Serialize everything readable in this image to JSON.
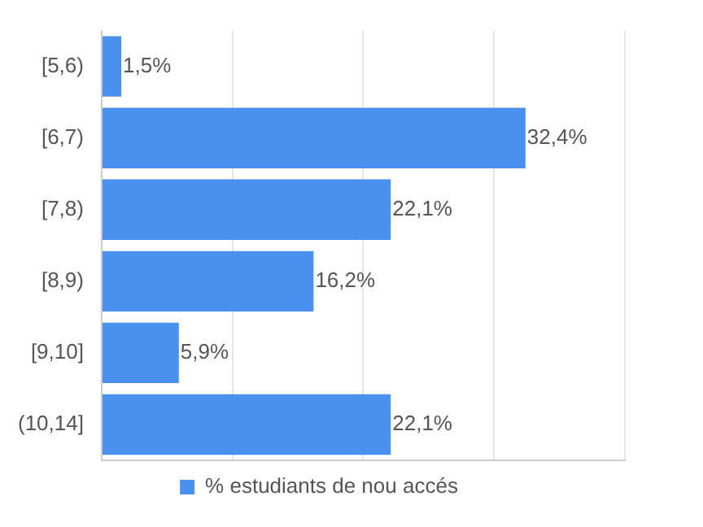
{
  "chart_data": {
    "type": "bar",
    "orientation": "horizontal",
    "categories": [
      "[5,6)",
      "[6,7)",
      "[7,8)",
      "[8,9)",
      "[9,10]",
      "(10,14]"
    ],
    "series": [
      {
        "name": "% estudiants de nou accés",
        "color": "#4a90ee",
        "values": [
          1.5,
          32.4,
          22.1,
          16.2,
          5.9,
          22.1
        ],
        "value_labels": [
          "1,5%",
          "32,4%",
          "22,1%",
          "16,2%",
          "5,9%",
          "22,1%"
        ]
      }
    ],
    "xlim": [
      0,
      40
    ],
    "xticks": [
      {
        "value": 0,
        "label": null
      },
      {
        "value": 10,
        "label": null
      },
      {
        "value": 20,
        "label": null
      },
      {
        "value": 30,
        "label": null
      },
      {
        "value": 40,
        "label": null
      }
    ],
    "tick_labels": "y",
    "grid": "x",
    "legend": "bottom"
  }
}
